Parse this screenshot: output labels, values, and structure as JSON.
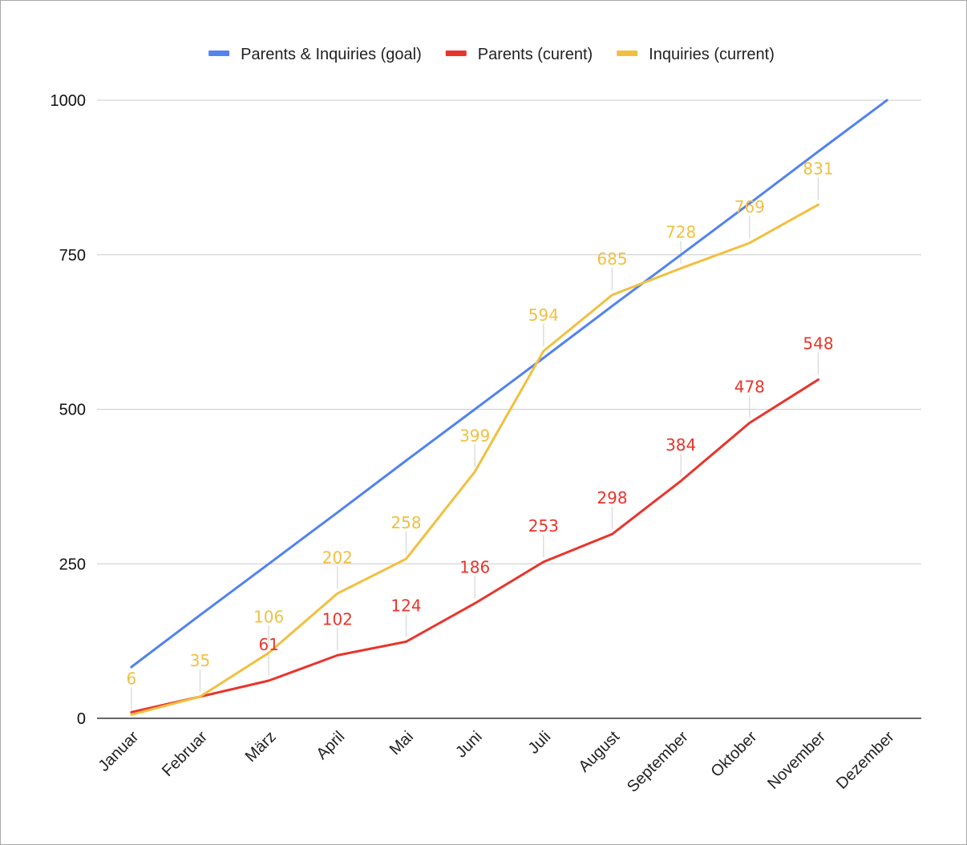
{
  "chart_data": {
    "type": "line",
    "title": "",
    "xlabel": "",
    "ylabel": "",
    "categories": [
      "Januar",
      "Februar",
      "März",
      "April",
      "Mai",
      "Juni",
      "Juli",
      "August",
      "September",
      "Oktober",
      "November",
      "Dezember"
    ],
    "ylim": [
      0,
      1000
    ],
    "yticks": [
      0,
      250,
      500,
      750,
      1000
    ],
    "grid": true,
    "legend_position": "top",
    "series": [
      {
        "name": "Parents & Inquiries (goal)",
        "color": "#5383ec",
        "values": [
          83,
          167,
          250,
          333,
          417,
          500,
          583,
          667,
          750,
          833,
          917,
          1000
        ],
        "data_labels": false
      },
      {
        "name": "Parents (curent)",
        "color": "#e8352c",
        "values": [
          10,
          35,
          61,
          102,
          124,
          186,
          253,
          298,
          384,
          478,
          548,
          null
        ],
        "labels": [
          "",
          "",
          "61",
          "102",
          "124",
          "186",
          "253",
          "298",
          "384",
          "478",
          "548",
          ""
        ],
        "data_labels": true
      },
      {
        "name": "Inquiries (current)",
        "color": "#f1c040",
        "values": [
          6,
          35,
          106,
          202,
          258,
          399,
          594,
          685,
          728,
          769,
          831,
          null
        ],
        "labels": [
          "6",
          "35",
          "106",
          "202",
          "258",
          "399",
          "594",
          "685",
          "728",
          "769",
          "831",
          ""
        ],
        "data_labels": true
      }
    ]
  }
}
